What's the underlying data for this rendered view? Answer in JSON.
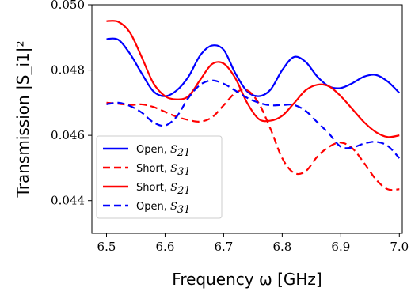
{
  "chart_data": {
    "type": "line",
    "xlabel": "Frequency ω [GHz]",
    "ylabel": "Transmission |S_i1|²",
    "xlim": [
      6.475,
      7.005
    ],
    "ylim": [
      0.043,
      0.05
    ],
    "xticks": [
      "6.5",
      "6.6",
      "6.7",
      "6.8",
      "6.9",
      "7.0"
    ],
    "xtick_values": [
      6.5,
      6.6,
      6.7,
      6.8,
      6.9,
      7.0
    ],
    "yticks": [
      "0.044",
      "0.046",
      "0.048",
      "0.050"
    ],
    "ytick_values": [
      0.044,
      0.046,
      0.048,
      0.05
    ],
    "grid": false,
    "legend_position": "lower-left",
    "x": [
      6.5,
      6.52,
      6.54,
      6.56,
      6.58,
      6.6,
      6.62,
      6.64,
      6.66,
      6.68,
      6.7,
      6.72,
      6.74,
      6.76,
      6.78,
      6.8,
      6.82,
      6.84,
      6.86,
      6.88,
      6.9,
      6.92,
      6.94,
      6.96,
      6.98,
      7.0
    ],
    "series": [
      {
        "name": "Open, S21",
        "label_main": "Open, ",
        "label_sub": "S",
        "label_idx": "21",
        "color": "#0000ff",
        "dash": "solid",
        "values": [
          0.04895,
          0.04893,
          0.0485,
          0.0479,
          0.04735,
          0.0472,
          0.04738,
          0.0478,
          0.04845,
          0.04875,
          0.04862,
          0.0479,
          0.04735,
          0.0472,
          0.0474,
          0.048,
          0.0484,
          0.04825,
          0.0478,
          0.0475,
          0.04745,
          0.0476,
          0.0478,
          0.04785,
          0.04765,
          0.0473
        ]
      },
      {
        "name": "Short, S31",
        "label_main": "Short, ",
        "label_sub": "S",
        "label_idx": "31",
        "color": "#ff0000",
        "dash": "dashed",
        "values": [
          0.047,
          0.04697,
          0.04693,
          0.04695,
          0.04687,
          0.04672,
          0.04657,
          0.04647,
          0.04642,
          0.04655,
          0.04692,
          0.0473,
          0.04738,
          0.04698,
          0.0462,
          0.0453,
          0.04485,
          0.0449,
          0.04535,
          0.04565,
          0.04578,
          0.0456,
          0.04515,
          0.04465,
          0.04435,
          0.04435
        ]
      },
      {
        "name": "Short, S21",
        "label_main": "Short, ",
        "label_sub": "S",
        "label_idx": "21",
        "color": "#ff0000",
        "dash": "solid",
        "values": [
          0.0495,
          0.04948,
          0.04915,
          0.0484,
          0.0476,
          0.0472,
          0.0471,
          0.0472,
          0.0477,
          0.04818,
          0.0482,
          0.04775,
          0.047,
          0.0465,
          0.04645,
          0.0466,
          0.04698,
          0.04738,
          0.04755,
          0.0475,
          0.0472,
          0.0468,
          0.0464,
          0.0461,
          0.04595,
          0.046
        ]
      },
      {
        "name": "Open, S31",
        "label_main": "Open, ",
        "label_sub": "S",
        "label_idx": "31",
        "color": "#0000ff",
        "dash": "dashed",
        "values": [
          0.04695,
          0.047,
          0.0469,
          0.0467,
          0.0464,
          0.0463,
          0.04658,
          0.04715,
          0.04755,
          0.04768,
          0.04758,
          0.04737,
          0.04715,
          0.047,
          0.04692,
          0.04693,
          0.04693,
          0.04675,
          0.0464,
          0.04605,
          0.04565,
          0.04563,
          0.04575,
          0.0458,
          0.04568,
          0.0453
        ]
      }
    ]
  }
}
